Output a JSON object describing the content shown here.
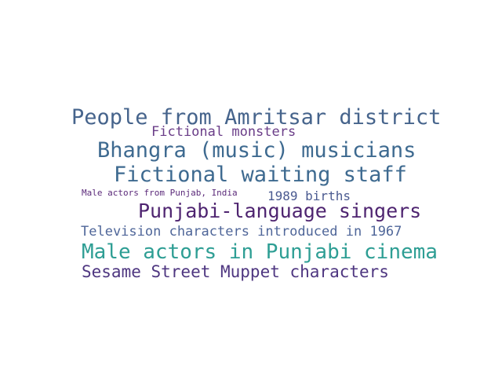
{
  "word_cloud": {
    "words": [
      {
        "id": "w1",
        "text": "People from Amritsar district",
        "color": "#46648c"
      },
      {
        "id": "w2",
        "text": "Fictional monsters",
        "color": "#6a3d88"
      },
      {
        "id": "w3",
        "text": "Bhangra (music) musicians",
        "color": "#3e6a90"
      },
      {
        "id": "w4",
        "text": "Fictional waiting staff",
        "color": "#3e6a90"
      },
      {
        "id": "w5",
        "text": "Male actors from Punjab, India",
        "color": "#5b2a7a"
      },
      {
        "id": "w6",
        "text": "1989 births",
        "color": "#4a5a90"
      },
      {
        "id": "w7",
        "text": "Punjabi-language singers",
        "color": "#4e2470"
      },
      {
        "id": "w8",
        "text": "Television characters introduced in 1967",
        "color": "#4f6699"
      },
      {
        "id": "w9",
        "text": "Male actors in Punjabi cinema",
        "color": "#2e9e94"
      },
      {
        "id": "w10",
        "text": "Sesame Street Muppet characters",
        "color": "#4e3680"
      }
    ]
  }
}
